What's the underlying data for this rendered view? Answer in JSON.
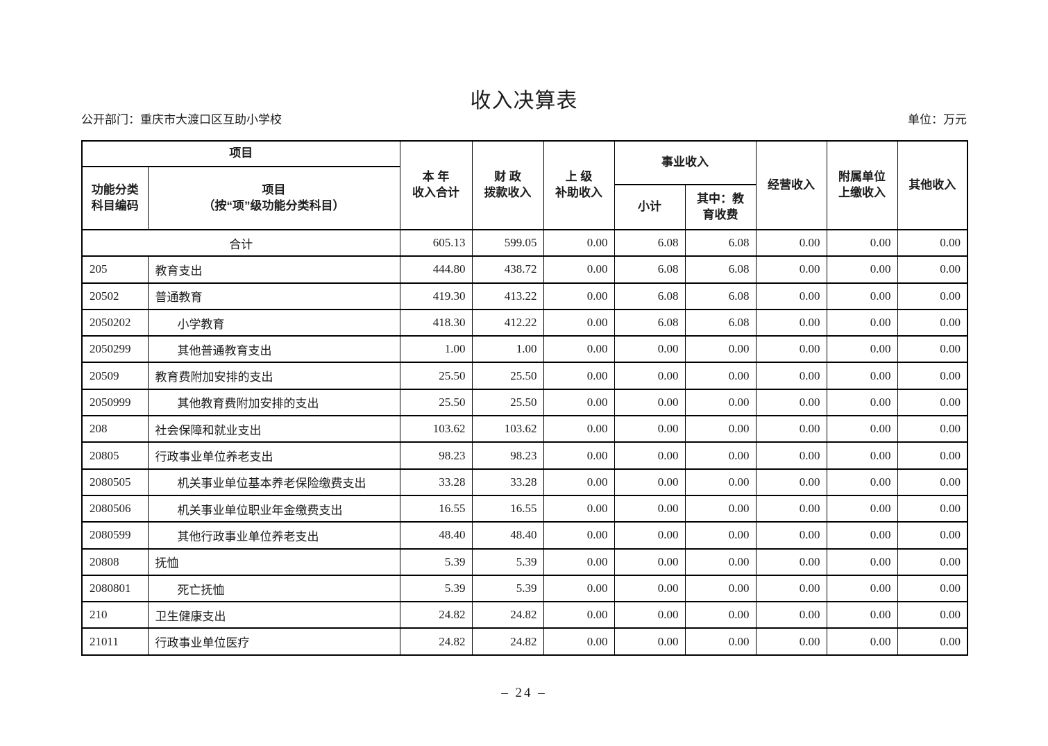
{
  "page": {
    "title": "收入决算表",
    "department_label": "公开部门：重庆市大渡口区互助小学校",
    "unit_label": "单位：万元",
    "page_number": "– 24 –"
  },
  "table": {
    "header": {
      "project_group": "项目",
      "code": "功能分类\n科目编码",
      "project_detail": "项目\n（按“项”级功能分类科目）",
      "annual_total": "本 年\n收入合计",
      "fiscal_appropriation": "财 政\n拨款收入",
      "superior_subsidy": "上 级\n补助收入",
      "business_income_group": "事业收入",
      "business_subtotal": "小计",
      "education_fee": "其中：教\n育收费",
      "operating_income": "经营收入",
      "affiliated_unit": "附属单位\n上缴收入",
      "other_income": "其他收入"
    },
    "rows": [
      {
        "total": true,
        "code": "",
        "name": "合计",
        "indent": 0,
        "values": [
          "605.13",
          "599.05",
          "0.00",
          "6.08",
          "6.08",
          "0.00",
          "0.00",
          "0.00"
        ]
      },
      {
        "total": false,
        "code": "205",
        "name": "教育支出",
        "indent": 0,
        "values": [
          "444.80",
          "438.72",
          "0.00",
          "6.08",
          "6.08",
          "0.00",
          "0.00",
          "0.00"
        ]
      },
      {
        "total": false,
        "code": "20502",
        "name": "普通教育",
        "indent": 0,
        "values": [
          "419.30",
          "413.22",
          "0.00",
          "6.08",
          "6.08",
          "0.00",
          "0.00",
          "0.00"
        ]
      },
      {
        "total": false,
        "code": "2050202",
        "name": "小学教育",
        "indent": 1,
        "values": [
          "418.30",
          "412.22",
          "0.00",
          "6.08",
          "6.08",
          "0.00",
          "0.00",
          "0.00"
        ]
      },
      {
        "total": false,
        "code": "2050299",
        "name": "其他普通教育支出",
        "indent": 1,
        "values": [
          "1.00",
          "1.00",
          "0.00",
          "0.00",
          "0.00",
          "0.00",
          "0.00",
          "0.00"
        ]
      },
      {
        "total": false,
        "code": "20509",
        "name": "教育费附加安排的支出",
        "indent": 0,
        "values": [
          "25.50",
          "25.50",
          "0.00",
          "0.00",
          "0.00",
          "0.00",
          "0.00",
          "0.00"
        ]
      },
      {
        "total": false,
        "code": "2050999",
        "name": "其他教育费附加安排的支出",
        "indent": 1,
        "values": [
          "25.50",
          "25.50",
          "0.00",
          "0.00",
          "0.00",
          "0.00",
          "0.00",
          "0.00"
        ]
      },
      {
        "total": false,
        "code": "208",
        "name": "社会保障和就业支出",
        "indent": 0,
        "values": [
          "103.62",
          "103.62",
          "0.00",
          "0.00",
          "0.00",
          "0.00",
          "0.00",
          "0.00"
        ]
      },
      {
        "total": false,
        "code": "20805",
        "name": "行政事业单位养老支出",
        "indent": 0,
        "values": [
          "98.23",
          "98.23",
          "0.00",
          "0.00",
          "0.00",
          "0.00",
          "0.00",
          "0.00"
        ]
      },
      {
        "total": false,
        "code": "2080505",
        "name": "机关事业单位基本养老保险缴费支出",
        "indent": 1,
        "values": [
          "33.28",
          "33.28",
          "0.00",
          "0.00",
          "0.00",
          "0.00",
          "0.00",
          "0.00"
        ]
      },
      {
        "total": false,
        "code": "2080506",
        "name": "机关事业单位职业年金缴费支出",
        "indent": 1,
        "values": [
          "16.55",
          "16.55",
          "0.00",
          "0.00",
          "0.00",
          "0.00",
          "0.00",
          "0.00"
        ]
      },
      {
        "total": false,
        "code": "2080599",
        "name": "其他行政事业单位养老支出",
        "indent": 1,
        "values": [
          "48.40",
          "48.40",
          "0.00",
          "0.00",
          "0.00",
          "0.00",
          "0.00",
          "0.00"
        ]
      },
      {
        "total": false,
        "code": "20808",
        "name": "抚恤",
        "indent": 0,
        "values": [
          "5.39",
          "5.39",
          "0.00",
          "0.00",
          "0.00",
          "0.00",
          "0.00",
          "0.00"
        ]
      },
      {
        "total": false,
        "code": "2080801",
        "name": "死亡抚恤",
        "indent": 1,
        "values": [
          "5.39",
          "5.39",
          "0.00",
          "0.00",
          "0.00",
          "0.00",
          "0.00",
          "0.00"
        ]
      },
      {
        "total": false,
        "code": "210",
        "name": "卫生健康支出",
        "indent": 0,
        "values": [
          "24.82",
          "24.82",
          "0.00",
          "0.00",
          "0.00",
          "0.00",
          "0.00",
          "0.00"
        ]
      },
      {
        "total": false,
        "code": "21011",
        "name": "行政事业单位医疗",
        "indent": 0,
        "values": [
          "24.82",
          "24.82",
          "0.00",
          "0.00",
          "0.00",
          "0.00",
          "0.00",
          "0.00"
        ]
      }
    ]
  }
}
